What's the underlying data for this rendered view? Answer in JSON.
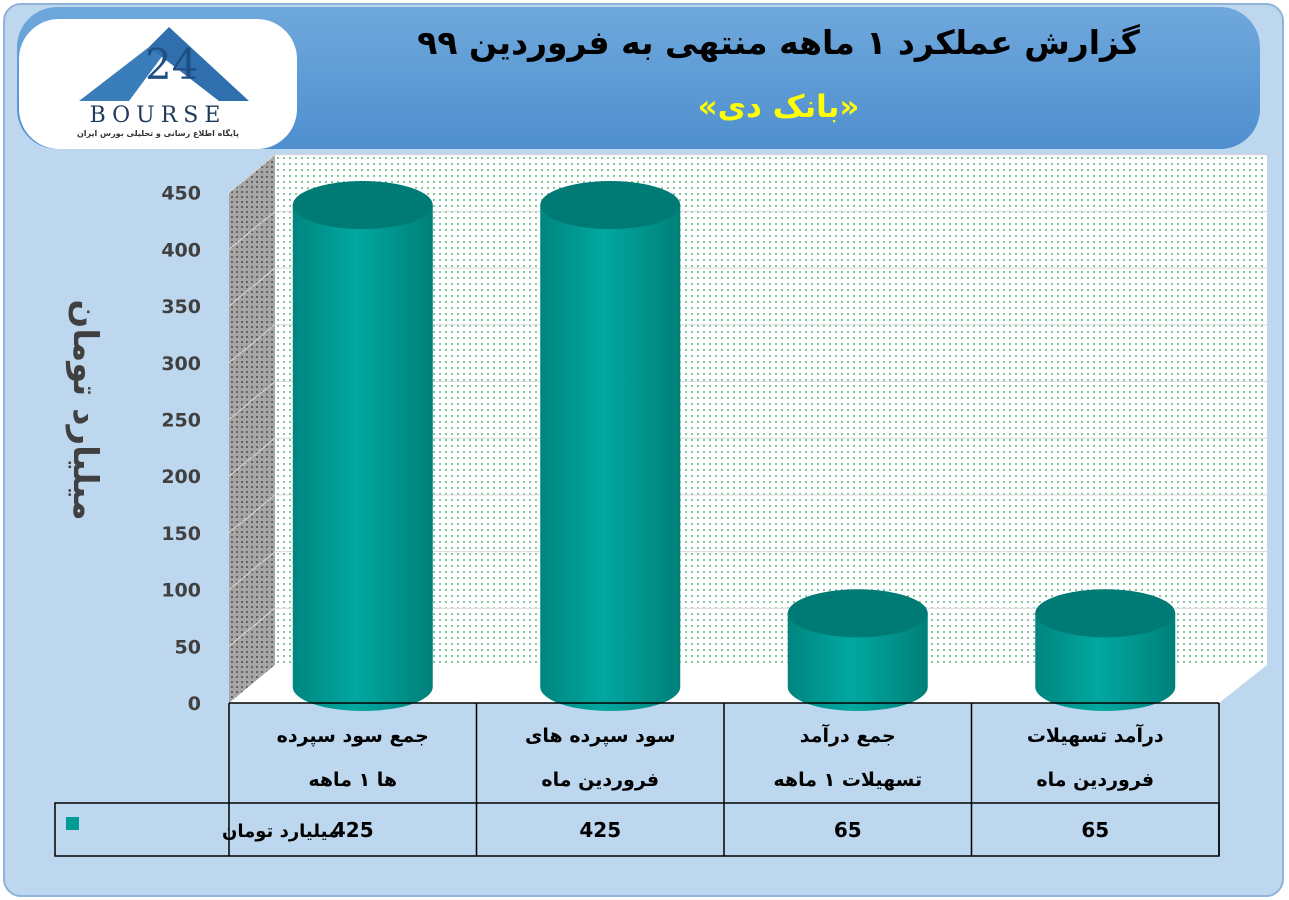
{
  "header": {
    "title": "گزارش عملکرد ۱ ماهه منتهی به فروردین ۹۹",
    "subtitle": "«بانک دی»"
  },
  "logo": {
    "text": "BOURSE",
    "tagline": "پایگاه اطلاع رسانی و تحلیلی بورس ایران"
  },
  "colors": {
    "bar": "#009b94",
    "bar_top": "#007a74",
    "frame": "#bdd7ee",
    "banner": "#5b9bd5",
    "subtitle": "#ffff00"
  },
  "chart_data": {
    "type": "bar",
    "ylabel": "میلیارد تومان",
    "ylim": [
      0,
      450
    ],
    "yticks": [
      "0",
      "50",
      "100",
      "150",
      "200",
      "250",
      "300",
      "350",
      "400",
      "450"
    ],
    "categories": [
      [
        "درآمد تسهیلات",
        "فروردین ماه"
      ],
      [
        "جمع درآمد",
        "تسهیلات ۱ ماهه"
      ],
      [
        "سود سپرده های",
        "فروردین ماه"
      ],
      [
        "جمع سود سپرده",
        "ها ۱ ماهه"
      ]
    ],
    "series": [
      {
        "name": "میلیارد تومان",
        "values": [
          65,
          65,
          425,
          425
        ]
      }
    ],
    "value_labels": [
      "65",
      "65",
      "425",
      "425"
    ],
    "grid": true,
    "legend": "data-table"
  }
}
